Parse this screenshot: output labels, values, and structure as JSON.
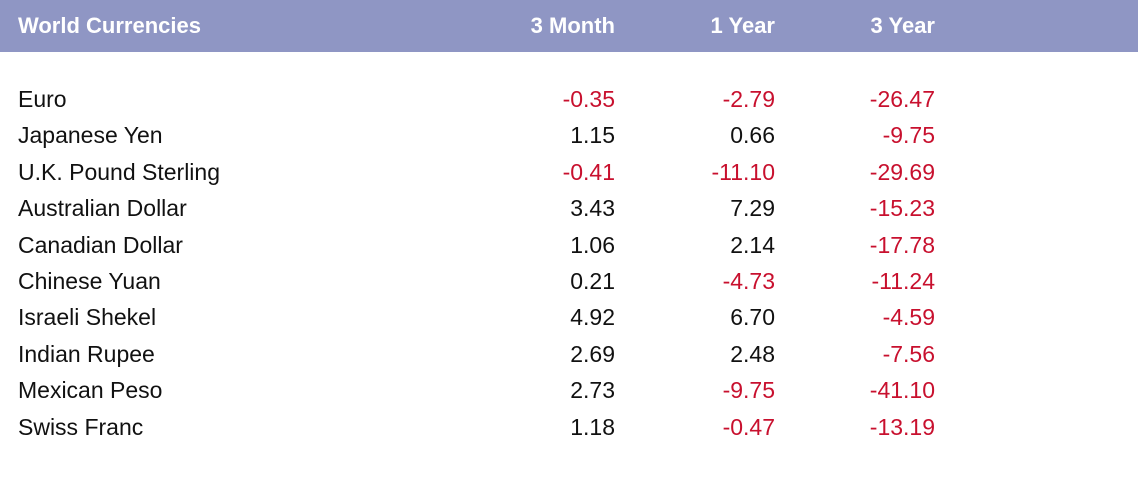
{
  "chart_data": {
    "type": "table",
    "title": "World Currencies",
    "columns": [
      "3 Month",
      "1 Year",
      "3 Year"
    ],
    "rows": [
      {
        "name": "Euro",
        "values": [
          "-0.35",
          "-2.79",
          "-26.47"
        ]
      },
      {
        "name": "Japanese Yen",
        "values": [
          "1.15",
          "0.66",
          "-9.75"
        ]
      },
      {
        "name": "U.K. Pound Sterling",
        "values": [
          "-0.41",
          "-11.10",
          "-29.69"
        ]
      },
      {
        "name": "Australian Dollar",
        "values": [
          "3.43",
          "7.29",
          "-15.23"
        ]
      },
      {
        "name": "Canadian Dollar",
        "values": [
          "1.06",
          "2.14",
          "-17.78"
        ]
      },
      {
        "name": "Chinese Yuan",
        "values": [
          "0.21",
          "-4.73",
          "-11.24"
        ]
      },
      {
        "name": "Israeli Shekel",
        "values": [
          "4.92",
          "6.70",
          "-4.59"
        ]
      },
      {
        "name": "Indian Rupee",
        "values": [
          "2.69",
          "2.48",
          "-7.56"
        ]
      },
      {
        "name": "Mexican Peso",
        "values": [
          "2.73",
          "-9.75",
          "-41.10"
        ]
      },
      {
        "name": "Swiss Franc",
        "values": [
          "1.18",
          "-0.47",
          "-13.19"
        ]
      }
    ],
    "colors": {
      "header_background": "#8f96c4",
      "header_text": "#ffffff",
      "positive": "#111111",
      "negative": "#c8102e"
    }
  }
}
